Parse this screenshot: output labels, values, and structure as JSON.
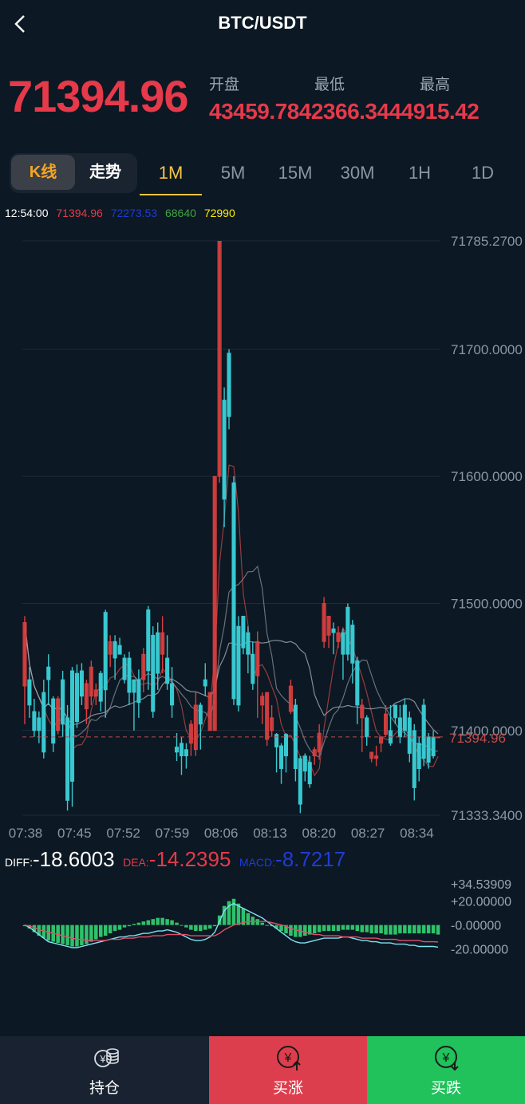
{
  "header": {
    "title": "BTC/USDT"
  },
  "ticker": {
    "last_price": "71394.96",
    "labels": [
      "开盘",
      "最低",
      "最高"
    ],
    "values_line": "43459.7842366.3444915.42"
  },
  "mode_tabs": {
    "kline": "K线",
    "trend": "走势"
  },
  "periods": [
    "1M",
    "5M",
    "15M",
    "30M",
    "1H",
    "1D"
  ],
  "active_period": "1M",
  "info_bar": {
    "time": "12:54:00",
    "v1": "71394.96",
    "v2": "72273.53",
    "v3": "68640",
    "v4": "72990"
  },
  "chart_data": {
    "type": "candlestick",
    "y_axis_ticks": [
      "71785.2700",
      "71700.0000",
      "71600.0000",
      "71500.0000",
      "71400.0000",
      "71333.3400"
    ],
    "ylim": [
      71333.34,
      71785.27
    ],
    "current_price_label": "71394.96",
    "current_price": 71394.96,
    "x_tick_labels": [
      "07:38",
      "07:45",
      "07:52",
      "07:59",
      "08:06",
      "08:13",
      "08:20",
      "08:27",
      "08:34"
    ],
    "candles": [
      {
        "o": 71435,
        "c": 71485,
        "h": 71490,
        "l": 71405
      },
      {
        "o": 71440,
        "c": 71420,
        "h": 71450,
        "l": 71410
      },
      {
        "o": 71415,
        "c": 71400,
        "h": 71425,
        "l": 71395
      },
      {
        "o": 71410,
        "c": 71400,
        "h": 71415,
        "l": 71390
      },
      {
        "o": 71430,
        "c": 71383,
        "h": 71440,
        "l": 71378
      },
      {
        "o": 71450,
        "c": 71440,
        "h": 71460,
        "l": 71420
      },
      {
        "o": 71425,
        "c": 71390,
        "h": 71427,
        "l": 71383
      },
      {
        "o": 71400,
        "c": 71425,
        "h": 71427,
        "l": 71397
      },
      {
        "o": 71440,
        "c": 71405,
        "h": 71447,
        "l": 71395
      },
      {
        "o": 71410,
        "c": 71345,
        "h": 71420,
        "l": 71337
      },
      {
        "o": 71447,
        "c": 71360,
        "h": 71450,
        "l": 71340
      },
      {
        "o": 71445,
        "c": 71407,
        "h": 71452,
        "l": 71402
      },
      {
        "o": 71447,
        "c": 71427,
        "h": 71453,
        "l": 71420
      },
      {
        "o": 71417,
        "c": 71437,
        "h": 71440,
        "l": 71405
      },
      {
        "o": 71427,
        "c": 71450,
        "h": 71455,
        "l": 71420
      },
      {
        "o": 71427,
        "c": 71432,
        "h": 71437,
        "l": 71420
      },
      {
        "o": 71445,
        "c": 71423,
        "h": 71447,
        "l": 71415
      },
      {
        "o": 71493,
        "c": 71432,
        "h": 71495,
        "l": 71410
      },
      {
        "o": 71460,
        "c": 71470,
        "h": 71475,
        "l": 71450
      },
      {
        "o": 71470,
        "c": 71457,
        "h": 71475,
        "l": 71440
      },
      {
        "o": 71467,
        "c": 71460,
        "h": 71473,
        "l": 71460
      },
      {
        "o": 71457,
        "c": 71440,
        "h": 71460,
        "l": 71437
      },
      {
        "o": 71457,
        "c": 71430,
        "h": 71462,
        "l": 71420
      },
      {
        "o": 71440,
        "c": 71430,
        "h": 71440,
        "l": 71400
      },
      {
        "o": 71440,
        "c": 71422,
        "h": 71448,
        "l": 71410
      },
      {
        "o": 71440,
        "c": 71460,
        "h": 71465,
        "l": 71430
      },
      {
        "o": 71495,
        "c": 71447,
        "h": 71498,
        "l": 71432
      },
      {
        "o": 71475,
        "c": 71415,
        "h": 71482,
        "l": 71410
      },
      {
        "o": 71477,
        "c": 71445,
        "h": 71485,
        "l": 71432
      },
      {
        "o": 71460,
        "c": 71477,
        "h": 71490,
        "l": 71445
      },
      {
        "o": 71457,
        "c": 71437,
        "h": 71475,
        "l": 71432
      },
      {
        "o": 71437,
        "c": 71420,
        "h": 71450,
        "l": 71410
      },
      {
        "o": 71387,
        "c": 71383,
        "h": 71398,
        "l": 71376
      },
      {
        "o": 71390,
        "c": 71380,
        "h": 71395,
        "l": 71365
      },
      {
        "o": 71385,
        "c": 71380,
        "h": 71390,
        "l": 71370
      },
      {
        "o": 71390,
        "c": 71405,
        "h": 71408,
        "l": 71380
      },
      {
        "o": 71385,
        "c": 71420,
        "h": 71430,
        "l": 71380
      },
      {
        "o": 71420,
        "c": 71405,
        "h": 71422,
        "l": 71385
      },
      {
        "o": 71440,
        "c": 71435,
        "h": 71453,
        "l": 71427
      },
      {
        "o": 71400,
        "c": 71430,
        "h": 71430,
        "l": 71400
      },
      {
        "o": 71400,
        "c": 71600,
        "h": 71600,
        "l": 71400
      },
      {
        "o": 71600,
        "c": 71785,
        "h": 71785,
        "l": 71595
      },
      {
        "o": 71660,
        "c": 71582,
        "h": 71670,
        "l": 71560
      },
      {
        "o": 71697,
        "c": 71647,
        "h": 71700,
        "l": 71637
      },
      {
        "o": 71595,
        "c": 71425,
        "h": 71600,
        "l": 71420
      },
      {
        "o": 71482,
        "c": 71420,
        "h": 71490,
        "l": 71415
      },
      {
        "o": 71490,
        "c": 71465,
        "h": 71490,
        "l": 71460
      },
      {
        "o": 71477,
        "c": 71460,
        "h": 71482,
        "l": 71445
      },
      {
        "o": 71460,
        "c": 71437,
        "h": 71470,
        "l": 71432
      },
      {
        "o": 71443,
        "c": 71470,
        "h": 71478,
        "l": 71410
      },
      {
        "o": 71420,
        "c": 71427,
        "h": 71430,
        "l": 71405
      },
      {
        "o": 71393,
        "c": 71430,
        "h": 71430,
        "l": 71388
      },
      {
        "o": 71400,
        "c": 71410,
        "h": 71420,
        "l": 71395
      },
      {
        "o": 71397,
        "c": 71387,
        "h": 71398,
        "l": 71367
      },
      {
        "o": 71388,
        "c": 71370,
        "h": 71390,
        "l": 71358
      },
      {
        "o": 71397,
        "c": 71380,
        "h": 71398,
        "l": 71367
      },
      {
        "o": 71415,
        "c": 71435,
        "h": 71440,
        "l": 71413
      },
      {
        "o": 71420,
        "c": 71370,
        "h": 71425,
        "l": 71360
      },
      {
        "o": 71378,
        "c": 71342,
        "h": 71380,
        "l": 71335
      },
      {
        "o": 71380,
        "c": 71368,
        "h": 71382,
        "l": 71360
      },
      {
        "o": 71375,
        "c": 71358,
        "h": 71380,
        "l": 71355
      },
      {
        "o": 71380,
        "c": 71385,
        "h": 71387,
        "l": 71373
      },
      {
        "o": 71383,
        "c": 71398,
        "h": 71405,
        "l": 71377
      },
      {
        "o": 71470,
        "c": 71500,
        "h": 71505,
        "l": 71465
      },
      {
        "o": 71475,
        "c": 71490,
        "h": 71490,
        "l": 71465
      },
      {
        "o": 71480,
        "c": 71477,
        "h": 71485,
        "l": 71460
      },
      {
        "o": 71470,
        "c": 71477,
        "h": 71482,
        "l": 71465
      },
      {
        "o": 71477,
        "c": 71460,
        "h": 71480,
        "l": 71440
      },
      {
        "o": 71497,
        "c": 71460,
        "h": 71500,
        "l": 71455
      },
      {
        "o": 71483,
        "c": 71453,
        "h": 71487,
        "l": 71437
      },
      {
        "o": 71455,
        "c": 71420,
        "h": 71458,
        "l": 71405
      },
      {
        "o": 71410,
        "c": 71420,
        "h": 71425,
        "l": 71383
      },
      {
        "o": 71410,
        "c": 71395,
        "h": 71412,
        "l": 71388
      },
      {
        "o": 71378,
        "c": 71383,
        "h": 71383,
        "l": 71375
      },
      {
        "o": 71378,
        "c": 71380,
        "h": 71388,
        "l": 71372
      },
      {
        "o": 71390,
        "c": 71395,
        "h": 71395,
        "l": 71383
      },
      {
        "o": 71397,
        "c": 71413,
        "h": 71420,
        "l": 71395
      },
      {
        "o": 71400,
        "c": 71390,
        "h": 71420,
        "l": 71388
      },
      {
        "o": 71420,
        "c": 71410,
        "h": 71420,
        "l": 71405
      },
      {
        "o": 71410,
        "c": 71395,
        "h": 71420,
        "l": 71390
      },
      {
        "o": 71420,
        "c": 71400,
        "h": 71425,
        "l": 71395
      },
      {
        "o": 71410,
        "c": 71382,
        "h": 71415,
        "l": 71375
      },
      {
        "o": 71400,
        "c": 71355,
        "h": 71405,
        "l": 71345
      },
      {
        "o": 71390,
        "c": 71370,
        "h": 71395,
        "l": 71360
      },
      {
        "o": 71420,
        "c": 71378,
        "h": 71425,
        "l": 71372
      },
      {
        "o": 71395,
        "c": 71375,
        "h": 71398,
        "l": 71370
      },
      {
        "o": 71395,
        "c": 71380,
        "h": 71400,
        "l": 71378
      },
      {
        "o": 71394.96,
        "c": 71394.96,
        "h": 71394.96,
        "l": 71394.96
      }
    ]
  },
  "macd": {
    "diff_label": "DIFF:",
    "diff_value": "-18.6003",
    "dea_label": "DEA:",
    "dea_value": "-14.2395",
    "macd_label": "MACD:",
    "macd_value": "-8.7217",
    "y_axis_ticks": [
      "+34.53909",
      "+20.00000",
      "-0.00000",
      "-20.00000"
    ],
    "ylim": [
      -27,
      34.53909
    ],
    "histogram": [
      -1,
      -3,
      -6,
      -9,
      -11,
      -13,
      -14,
      -15,
      -16,
      -17,
      -18,
      -18,
      -17,
      -16,
      -14,
      -12,
      -10,
      -9,
      -7,
      -5,
      -4,
      -2,
      -1,
      1,
      2,
      3,
      4,
      5,
      6,
      6,
      5,
      4,
      2,
      0,
      -2,
      -4,
      -5,
      -5,
      -4,
      -3,
      -1,
      8,
      16,
      20,
      22,
      18,
      14,
      10,
      7,
      5,
      2,
      0,
      -1,
      -3,
      -5,
      -7,
      -9,
      -10,
      -10,
      -9,
      -8,
      -7,
      -6,
      -5,
      -5,
      -5,
      -5,
      -4,
      -4,
      -4,
      -5,
      -6,
      -6,
      -7,
      -7,
      -7,
      -8,
      -8,
      -8,
      -7,
      -7,
      -7,
      -7,
      -7,
      -7,
      -7,
      -7,
      -8
    ],
    "diff_series": [
      0,
      -2,
      -5,
      -8,
      -11,
      -14,
      -15,
      -16,
      -17,
      -18,
      -19,
      -19,
      -18,
      -17,
      -16,
      -15,
      -14,
      -13,
      -12,
      -11,
      -10,
      -10,
      -9,
      -9,
      -8,
      -7,
      -7,
      -6,
      -5,
      -5,
      -4,
      -5,
      -6,
      -8,
      -10,
      -12,
      -13,
      -13,
      -12,
      -10,
      -6,
      3,
      12,
      16,
      18,
      16,
      14,
      12,
      10,
      8,
      6,
      3,
      0,
      -3,
      -6,
      -9,
      -12,
      -14,
      -15,
      -15,
      -14,
      -13,
      -12,
      -11,
      -11,
      -11,
      -11,
      -10,
      -10,
      -11,
      -12,
      -13,
      -13,
      -14,
      -14,
      -15,
      -15,
      -15,
      -16,
      -16,
      -16,
      -17,
      -17,
      -18,
      -18,
      -18,
      -18,
      -18.6
    ],
    "dea_series": [
      0,
      -1,
      -2,
      -4,
      -5,
      -6,
      -7,
      -8,
      -9,
      -10,
      -11,
      -12,
      -12,
      -13,
      -13,
      -13,
      -13,
      -13,
      -12,
      -12,
      -12,
      -11,
      -11,
      -11,
      -10,
      -10,
      -10,
      -9,
      -9,
      -9,
      -8,
      -8,
      -8,
      -8,
      -8,
      -9,
      -9,
      -9,
      -9,
      -9,
      -9,
      -7,
      -4,
      -2,
      0,
      1,
      2,
      3,
      3,
      3,
      3,
      3,
      2,
      1,
      0,
      -1,
      -3,
      -4,
      -5,
      -6,
      -7,
      -8,
      -8,
      -9,
      -9,
      -9,
      -9,
      -10,
      -10,
      -10,
      -10,
      -11,
      -11,
      -11,
      -11,
      -12,
      -12,
      -12,
      -12,
      -13,
      -13,
      -13,
      -13,
      -13,
      -14,
      -14,
      -14,
      -14.2
    ]
  },
  "footer": {
    "positions_label": "持仓",
    "buy_up_label": "买涨",
    "buy_down_label": "买跌",
    "colors": {
      "positions_bg": "#182231",
      "buy_up_bg": "#dd3e4d",
      "buy_down_bg": "#21c15b"
    }
  },
  "colors": {
    "up": "#d94040",
    "down": "#38c8d0",
    "accent": "#f5c445",
    "bg": "#0c1823"
  }
}
